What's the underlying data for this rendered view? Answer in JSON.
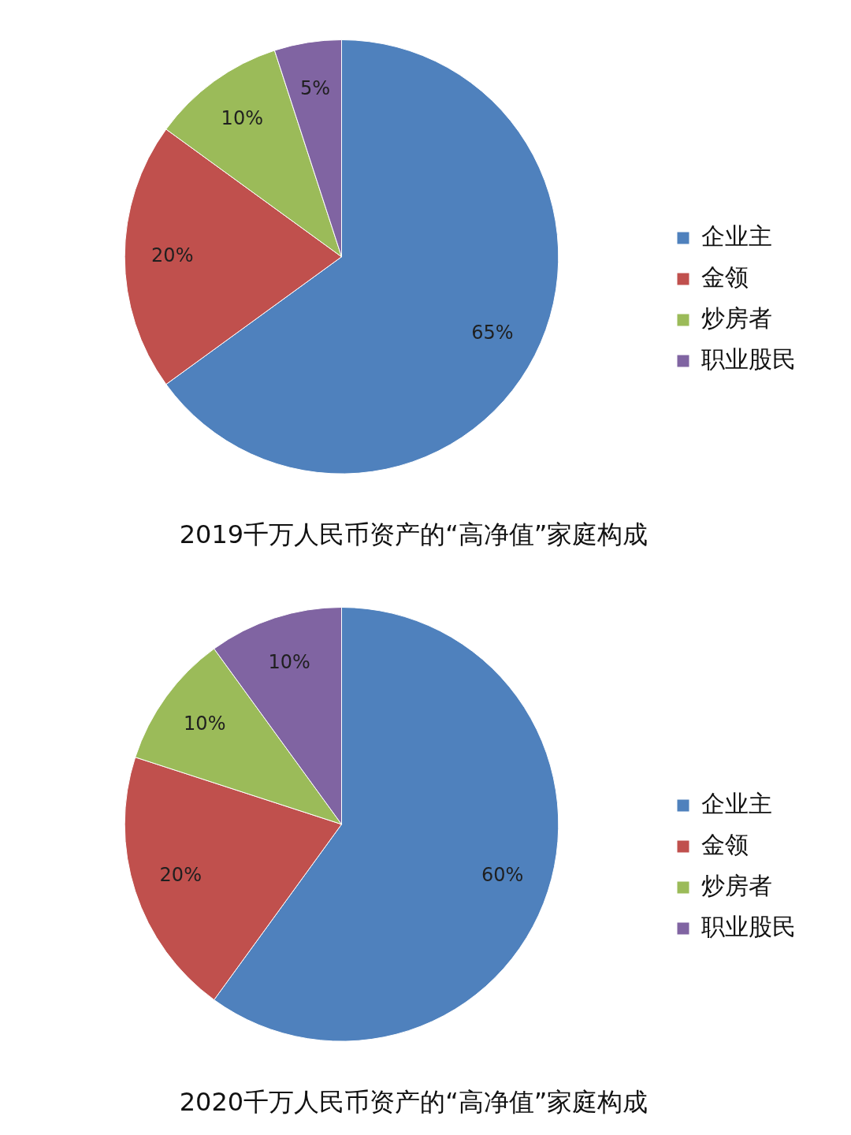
{
  "chart_data": [
    {
      "type": "pie",
      "title": "2019千万人民币资产的“高净值”家庭构成",
      "categories": [
        "企业主",
        "金领",
        "炒房者",
        "职业股民"
      ],
      "values": [
        65,
        20,
        10,
        5
      ],
      "value_labels": [
        "65%",
        "20%",
        "10%",
        "5%"
      ],
      "colors": [
        "#4f81bd",
        "#c0504d",
        "#9bbb59",
        "#8064a2"
      ],
      "legend": "right"
    },
    {
      "type": "pie",
      "title": "2020千万人民币资产的“高净值”家庭构成",
      "categories": [
        "企业主",
        "金领",
        "炒房者",
        "职业股民"
      ],
      "values": [
        60,
        20,
        10,
        10
      ],
      "value_labels": [
        "60%",
        "20%",
        "10%",
        "10%"
      ],
      "colors": [
        "#4f81bd",
        "#c0504d",
        "#9bbb59",
        "#8064a2"
      ],
      "legend": "right"
    }
  ]
}
